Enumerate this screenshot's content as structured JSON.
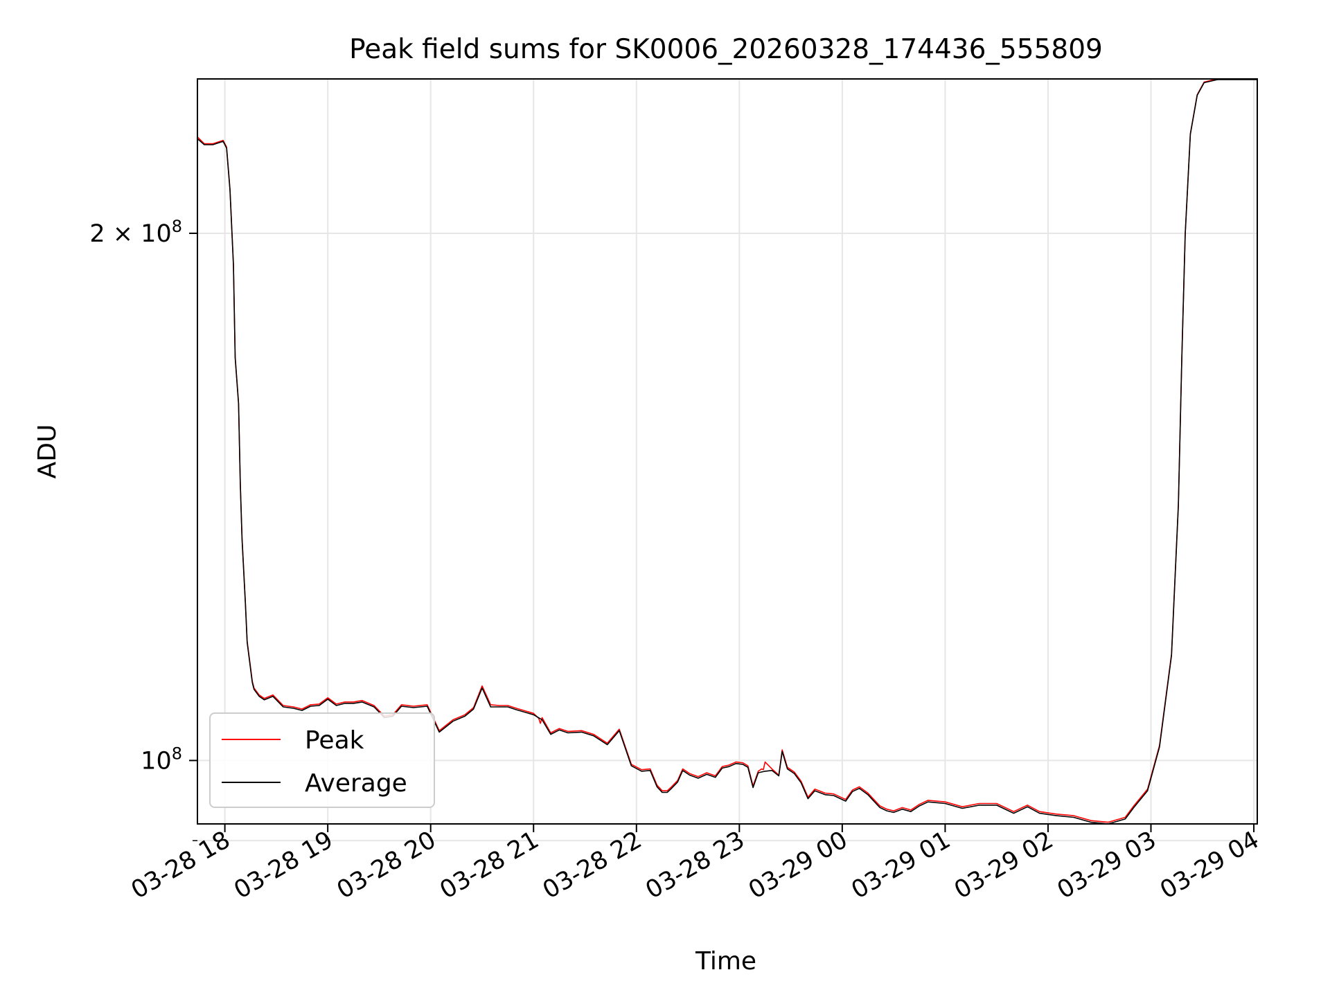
{
  "chart_data": {
    "type": "line",
    "title": "Peak field sums for SK0006_20260328_174436_555809",
    "xlabel": "Time",
    "ylabel": "ADU",
    "yscale": "log",
    "grid": true,
    "legend_position": "lower-left",
    "xlim": [
      "2026-03-28 17:44",
      "2026-03-29 04:02"
    ],
    "ylim": [
      92000000.0,
      245000000.0
    ],
    "x_ticks": [
      "03-28 18",
      "03-28 19",
      "03-28 20",
      "03-28 21",
      "03-28 22",
      "03-28 23",
      "03-29 00",
      "03-29 01",
      "03-29 02",
      "03-29 03",
      "03-29 04"
    ],
    "y_ticks": [
      {
        "value": 200000000,
        "base": "2 × 10",
        "exp": "8"
      },
      {
        "value": 100000000,
        "base": "10",
        "exp": "8"
      }
    ],
    "y_minor_ticks": [
      90000000
    ],
    "series": [
      {
        "name": "Peak",
        "color": "#ff0000",
        "x": [
          "2026-03-28 17:44",
          "2026-03-28 17:48",
          "2026-03-28 17:53",
          "2026-03-28 17:59",
          "2026-03-28 18:01",
          "2026-03-28 18:03",
          "2026-03-28 18:05",
          "2026-03-28 18:06",
          "2026-03-28 18:08",
          "2026-03-28 18:09",
          "2026-03-28 18:10",
          "2026-03-28 18:12",
          "2026-03-28 18:13",
          "2026-03-28 18:15",
          "2026-03-28 18:16",
          "2026-03-28 18:17",
          "2026-03-28 18:20",
          "2026-03-28 18:23",
          "2026-03-28 18:28",
          "2026-03-28 18:34",
          "2026-03-28 18:40",
          "2026-03-28 18:45",
          "2026-03-28 18:50",
          "2026-03-28 18:55",
          "2026-03-28 19:00",
          "2026-03-28 19:05",
          "2026-03-28 19:10",
          "2026-03-28 19:15",
          "2026-03-28 19:20",
          "2026-03-28 19:27",
          "2026-03-28 19:33",
          "2026-03-28 19:38",
          "2026-03-28 19:43",
          "2026-03-28 19:50",
          "2026-03-28 19:58",
          "2026-03-28 20:05",
          "2026-03-28 20:13",
          "2026-03-28 20:20",
          "2026-03-28 20:25",
          "2026-03-28 20:30",
          "2026-03-28 20:35",
          "2026-03-28 20:40",
          "2026-03-28 20:45",
          "2026-03-28 20:50",
          "2026-03-28 21:00",
          "2026-03-28 21:03",
          "2026-03-28 21:04",
          "2026-03-28 21:05",
          "2026-03-28 21:10",
          "2026-03-28 21:15",
          "2026-03-28 21:20",
          "2026-03-28 21:28",
          "2026-03-28 21:35",
          "2026-03-28 21:43",
          "2026-03-28 21:50",
          "2026-03-28 21:57",
          "2026-03-28 22:03",
          "2026-03-28 22:08",
          "2026-03-28 22:12",
          "2026-03-28 22:15",
          "2026-03-28 22:18",
          "2026-03-28 22:20",
          "2026-03-28 22:24",
          "2026-03-28 22:27",
          "2026-03-28 22:31",
          "2026-03-28 22:36",
          "2026-03-28 22:41",
          "2026-03-28 22:46",
          "2026-03-28 22:50",
          "2026-03-28 22:54",
          "2026-03-28 22:58",
          "2026-03-28 23:02",
          "2026-03-28 23:05",
          "2026-03-28 23:08",
          "2026-03-28 23:11",
          "2026-03-28 23:13",
          "2026-03-28 23:14",
          "2026-03-28 23:15",
          "2026-03-28 23:19",
          "2026-03-28 23:23",
          "2026-03-28 23:25",
          "2026-03-28 23:28",
          "2026-03-28 23:32",
          "2026-03-28 23:36",
          "2026-03-28 23:40",
          "2026-03-28 23:44",
          "2026-03-28 23:50",
          "2026-03-28 23:55",
          "2026-03-29 00:02",
          "2026-03-29 00:06",
          "2026-03-29 00:10",
          "2026-03-29 00:15",
          "2026-03-29 00:18",
          "2026-03-29 00:22",
          "2026-03-29 00:26",
          "2026-03-29 00:30",
          "2026-03-29 00:35",
          "2026-03-29 00:40",
          "2026-03-29 00:45",
          "2026-03-29 00:50",
          "2026-03-29 01:00",
          "2026-03-29 01:10",
          "2026-03-29 01:20",
          "2026-03-29 01:30",
          "2026-03-29 01:40",
          "2026-03-29 01:48",
          "2026-03-29 01:55",
          "2026-03-29 02:05",
          "2026-03-29 02:15",
          "2026-03-29 02:25",
          "2026-03-29 02:35",
          "2026-03-29 02:45",
          "2026-03-29 02:50",
          "2026-03-29 02:58",
          "2026-03-29 03:05",
          "2026-03-29 03:12",
          "2026-03-29 03:16",
          "2026-03-29 03:18",
          "2026-03-29 03:20",
          "2026-03-29 03:23",
          "2026-03-29 03:27",
          "2026-03-29 03:31",
          "2026-03-29 03:35",
          "2026-03-29 03:39",
          "2026-03-29 03:42",
          "2026-03-29 03:45",
          "2026-03-29 03:48",
          "2026-03-29 03:50",
          "2026-03-29 03:52",
          "2026-03-29 03:54",
          "2026-03-29 03:56",
          "2026-03-29 03:58",
          "2026-03-29 04:00",
          "2026-03-29 04:02"
        ],
        "y": [
          227000000,
          225000000,
          225000000,
          226000000,
          224000000,
          212000000,
          192000000,
          170000000,
          160000000,
          144000000,
          134000000,
          123000000,
          117000000,
          113000000,
          111000000,
          110000000,
          109000000,
          108500000,
          109000000,
          107500000,
          107300000,
          107000000,
          107600000,
          107700000,
          108600000,
          107700000,
          108000000,
          108000000,
          108200000,
          107500000,
          106000000,
          106200000,
          107600000,
          107400000,
          107600000,
          104000000,
          105500000,
          106200000,
          107200000,
          110300000,
          107600000,
          107500000,
          107500000,
          107100000,
          106400000,
          105700000,
          105000000,
          105800000,
          103700000,
          104300000,
          103900000,
          104000000,
          103500000,
          102300000,
          104200000,
          99500000,
          98800000,
          98900000,
          96800000,
          96100000,
          96100000,
          96500000,
          97400000,
          98900000,
          98300000,
          97900000,
          98400000,
          98000000,
          99200000,
          99400000,
          99800000,
          99700000,
          99300000,
          96700000,
          98600000,
          98900000,
          98800000,
          99800000,
          98900000,
          98100000,
          101400000,
          99100000,
          98500000,
          97300000,
          95300000,
          96300000,
          95800000,
          95700000,
          95000000,
          96200000,
          96600000,
          95800000,
          95100000,
          94200000,
          93800000,
          93600000,
          94000000,
          93700000,
          94400000,
          94900000,
          94700000,
          94100000,
          94500000,
          94500000,
          93500000,
          94300000,
          93500000,
          93200000,
          93000000,
          92400000,
          92200000,
          92800000,
          94200000,
          96300000,
          102000000,
          115000000,
          140000000,
          170000000,
          200000000,
          228000000,
          240000000,
          244000000,
          244500000,
          245000000,
          245000000,
          245000000,
          245000000,
          245000000,
          245000000,
          245000000,
          245000000,
          245000000,
          245000000,
          245000000
        ]
      },
      {
        "name": "Average",
        "color": "#000000",
        "x": [
          "2026-03-28 17:44",
          "2026-03-28 17:48",
          "2026-03-28 17:53",
          "2026-03-28 17:59",
          "2026-03-28 18:01",
          "2026-03-28 18:03",
          "2026-03-28 18:05",
          "2026-03-28 18:06",
          "2026-03-28 18:08",
          "2026-03-28 18:09",
          "2026-03-28 18:10",
          "2026-03-28 18:12",
          "2026-03-28 18:13",
          "2026-03-28 18:15",
          "2026-03-28 18:16",
          "2026-03-28 18:17",
          "2026-03-28 18:20",
          "2026-03-28 18:23",
          "2026-03-28 18:28",
          "2026-03-28 18:34",
          "2026-03-28 18:40",
          "2026-03-28 18:45",
          "2026-03-28 18:50",
          "2026-03-28 18:55",
          "2026-03-28 19:00",
          "2026-03-28 19:05",
          "2026-03-28 19:10",
          "2026-03-28 19:15",
          "2026-03-28 19:20",
          "2026-03-28 19:27",
          "2026-03-28 19:33",
          "2026-03-28 19:38",
          "2026-03-28 19:43",
          "2026-03-28 19:50",
          "2026-03-28 19:58",
          "2026-03-28 20:05",
          "2026-03-28 20:13",
          "2026-03-28 20:20",
          "2026-03-28 20:25",
          "2026-03-28 20:30",
          "2026-03-28 20:35",
          "2026-03-28 20:40",
          "2026-03-28 20:45",
          "2026-03-28 20:50",
          "2026-03-28 21:00",
          "2026-03-28 21:05",
          "2026-03-28 21:10",
          "2026-03-28 21:15",
          "2026-03-28 21:20",
          "2026-03-28 21:28",
          "2026-03-28 21:35",
          "2026-03-28 21:43",
          "2026-03-28 21:50",
          "2026-03-28 21:57",
          "2026-03-28 22:03",
          "2026-03-28 22:08",
          "2026-03-28 22:12",
          "2026-03-28 22:15",
          "2026-03-28 22:18",
          "2026-03-28 22:20",
          "2026-03-28 22:24",
          "2026-03-28 22:27",
          "2026-03-28 22:31",
          "2026-03-28 22:36",
          "2026-03-28 22:41",
          "2026-03-28 22:46",
          "2026-03-28 22:50",
          "2026-03-28 22:54",
          "2026-03-28 22:58",
          "2026-03-28 23:02",
          "2026-03-28 23:05",
          "2026-03-28 23:08",
          "2026-03-28 23:11",
          "2026-03-28 23:15",
          "2026-03-28 23:19",
          "2026-03-28 23:23",
          "2026-03-28 23:25",
          "2026-03-28 23:28",
          "2026-03-28 23:32",
          "2026-03-28 23:36",
          "2026-03-28 23:40",
          "2026-03-28 23:44",
          "2026-03-28 23:50",
          "2026-03-28 23:55",
          "2026-03-29 00:02",
          "2026-03-29 00:06",
          "2026-03-29 00:10",
          "2026-03-29 00:15",
          "2026-03-29 00:18",
          "2026-03-29 00:22",
          "2026-03-29 00:26",
          "2026-03-29 00:30",
          "2026-03-29 00:35",
          "2026-03-29 00:40",
          "2026-03-29 00:45",
          "2026-03-29 00:50",
          "2026-03-29 01:00",
          "2026-03-29 01:10",
          "2026-03-29 01:20",
          "2026-03-29 01:30",
          "2026-03-29 01:40",
          "2026-03-29 01:48",
          "2026-03-29 01:55",
          "2026-03-29 02:05",
          "2026-03-29 02:15",
          "2026-03-29 02:25",
          "2026-03-29 02:35",
          "2026-03-29 02:45",
          "2026-03-29 02:50",
          "2026-03-29 02:58",
          "2026-03-29 03:05",
          "2026-03-29 03:12",
          "2026-03-29 03:16",
          "2026-03-29 03:18",
          "2026-03-29 03:20",
          "2026-03-29 03:23",
          "2026-03-29 03:27",
          "2026-03-29 03:31",
          "2026-03-29 03:35",
          "2026-03-29 03:39",
          "2026-03-29 03:42",
          "2026-03-29 03:45",
          "2026-03-29 03:48",
          "2026-03-29 03:50",
          "2026-03-29 03:52",
          "2026-03-29 03:54",
          "2026-03-29 03:56",
          "2026-03-29 03:58",
          "2026-03-29 04:00",
          "2026-03-29 04:02"
        ],
        "y": [
          226500000,
          224700000,
          224700000,
          225700000,
          223700000,
          211700000,
          191700000,
          169800000,
          159800000,
          143800000,
          133800000,
          122800000,
          116800000,
          112800000,
          110800000,
          109800000,
          108800000,
          108300000,
          108800000,
          107300000,
          107100000,
          106800000,
          107400000,
          107500000,
          108400000,
          107500000,
          107800000,
          107800000,
          108000000,
          107300000,
          105800000,
          106000000,
          107400000,
          107200000,
          107400000,
          103800000,
          105300000,
          106000000,
          107000000,
          110000000,
          107300000,
          107300000,
          107300000,
          106900000,
          106200000,
          105500000,
          103500000,
          104100000,
          103700000,
          103800000,
          103300000,
          102100000,
          104000000,
          99300000,
          98600000,
          98700000,
          96600000,
          95900000,
          95900000,
          96300000,
          97200000,
          98700000,
          98100000,
          97700000,
          98200000,
          97800000,
          99000000,
          99200000,
          99600000,
          99500000,
          99100000,
          96500000,
          98400000,
          98600000,
          98700000,
          98000000,
          101200000,
          98900000,
          98300000,
          97100000,
          95100000,
          96100000,
          95600000,
          95500000,
          94800000,
          96000000,
          96400000,
          95600000,
          94900000,
          94000000,
          93600000,
          93400000,
          93800000,
          93500000,
          94200000,
          94700000,
          94500000,
          93900000,
          94300000,
          94300000,
          93300000,
          94100000,
          93300000,
          93000000,
          92800000,
          92200000,
          92000000,
          92600000,
          94000000,
          96100000,
          101800000,
          114800000,
          139800000,
          169800000,
          199800000,
          227800000,
          239800000,
          243800000,
          244300000,
          244800000,
          244800000,
          244800000,
          244800000,
          244800000,
          244800000,
          244800000,
          244800000,
          244800000,
          244800000,
          244800000
        ]
      }
    ]
  }
}
